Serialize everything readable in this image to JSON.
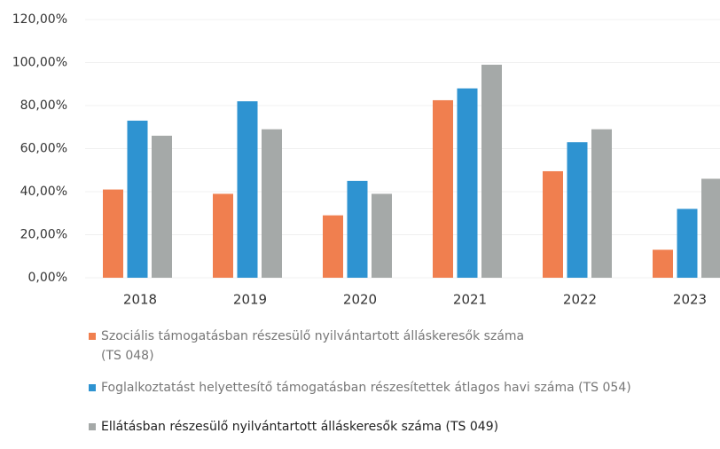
{
  "chart_data": {
    "type": "bar",
    "categories": [
      "2018",
      "2019",
      "2020",
      "2021",
      "2022",
      "2023"
    ],
    "series": [
      {
        "name": "Szociális támogatásban részesülő nyilvántartott álláskeresők száma\n(TS 048)",
        "color": "#f07f4f",
        "values": [
          41,
          39,
          29,
          82.5,
          49.5,
          13
        ]
      },
      {
        "name": "Foglalkoztatást helyettesítő támogatásban részesítettek átlagos havi száma (TS 054)",
        "color": "#2e93d1",
        "values": [
          73,
          82,
          45,
          88,
          63,
          32
        ]
      },
      {
        "name": "Ellátásban részesülő nyilvántartott álláskeresők száma (TS 049)",
        "color": "#a5a9a8",
        "values": [
          66,
          69,
          39,
          99,
          69,
          46
        ]
      }
    ],
    "ylim": [
      0,
      120
    ],
    "yticks": [
      {
        "value": 0,
        "label": "0,00%"
      },
      {
        "value": 20,
        "label": "20,00%"
      },
      {
        "value": 40,
        "label": "40,00%"
      },
      {
        "value": 60,
        "label": "60,00%"
      },
      {
        "value": 80,
        "label": "80,00%"
      },
      {
        "value": 100,
        "label": "100,00%"
      },
      {
        "value": 120,
        "label": "120,00%"
      }
    ],
    "grid": true
  }
}
